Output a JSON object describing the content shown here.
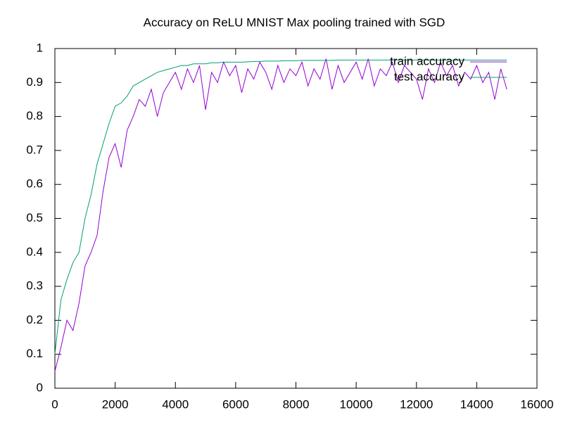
{
  "chart_data": {
    "type": "line",
    "title": "Accuracy on ReLU MNIST Max pooling trained with SGD",
    "x": [
      0,
      200,
      400,
      600,
      800,
      1000,
      1200,
      1400,
      1600,
      1800,
      2000,
      2200,
      2400,
      2600,
      2800,
      3000,
      3200,
      3400,
      3600,
      3800,
      4000,
      4200,
      4400,
      4600,
      4800,
      5000,
      5200,
      5400,
      5600,
      5800,
      6000,
      6200,
      6400,
      6600,
      6800,
      7000,
      7200,
      7400,
      7600,
      7800,
      8000,
      8200,
      8400,
      8600,
      8800,
      9000,
      9200,
      9400,
      9600,
      9800,
      10000,
      10200,
      10400,
      10600,
      10800,
      11000,
      11200,
      11400,
      11600,
      11800,
      12000,
      12200,
      12400,
      12600,
      12800,
      13000,
      13200,
      13400,
      13600,
      13800,
      14000,
      14200,
      14400,
      14600,
      14800,
      15000
    ],
    "series": [
      {
        "name": "train accuracy",
        "color": "#9400d3",
        "values": [
          0.05,
          0.12,
          0.2,
          0.17,
          0.25,
          0.36,
          0.4,
          0.45,
          0.58,
          0.68,
          0.72,
          0.65,
          0.76,
          0.8,
          0.85,
          0.83,
          0.88,
          0.8,
          0.87,
          0.9,
          0.93,
          0.88,
          0.94,
          0.9,
          0.95,
          0.82,
          0.93,
          0.9,
          0.96,
          0.92,
          0.95,
          0.87,
          0.94,
          0.91,
          0.96,
          0.93,
          0.88,
          0.95,
          0.9,
          0.94,
          0.92,
          0.96,
          0.89,
          0.94,
          0.91,
          0.97,
          0.88,
          0.95,
          0.9,
          0.93,
          0.96,
          0.91,
          0.97,
          0.89,
          0.94,
          0.92,
          0.96,
          0.9,
          0.95,
          0.93,
          0.91,
          0.85,
          0.94,
          0.9,
          0.96,
          0.92,
          0.95,
          0.89,
          0.93,
          0.91,
          0.95,
          0.9,
          0.93,
          0.85,
          0.94,
          0.88
        ]
      },
      {
        "name": "test accuracy",
        "color": "#009e73",
        "values": [
          0.1,
          0.26,
          0.32,
          0.37,
          0.4,
          0.5,
          0.57,
          0.66,
          0.72,
          0.78,
          0.83,
          0.84,
          0.86,
          0.89,
          0.9,
          0.91,
          0.92,
          0.93,
          0.935,
          0.94,
          0.945,
          0.95,
          0.95,
          0.955,
          0.955,
          0.955,
          0.958,
          0.958,
          0.96,
          0.96,
          0.96,
          0.96,
          0.961,
          0.962,
          0.962,
          0.963,
          0.963,
          0.963,
          0.964,
          0.964,
          0.964,
          0.965,
          0.965,
          0.965,
          0.965,
          0.965,
          0.965,
          0.966,
          0.966,
          0.966,
          0.966,
          0.966,
          0.966,
          0.966,
          0.966,
          0.966,
          0.966,
          0.966,
          0.966,
          0.966,
          0.966,
          0.966,
          0.966,
          0.966,
          0.966,
          0.966,
          0.966,
          0.966,
          0.966,
          0.966,
          0.966,
          0.966,
          0.966,
          0.966,
          0.966,
          0.966
        ]
      }
    ],
    "xlim": [
      0,
      16000
    ],
    "xticks": [
      0,
      2000,
      4000,
      6000,
      8000,
      10000,
      12000,
      14000,
      16000
    ],
    "ylim": [
      0,
      1
    ],
    "yticks": [
      0,
      0.1,
      0.2,
      0.3,
      0.4,
      0.5,
      0.6,
      0.7,
      0.8,
      0.9,
      1
    ],
    "legend": "top-right"
  }
}
